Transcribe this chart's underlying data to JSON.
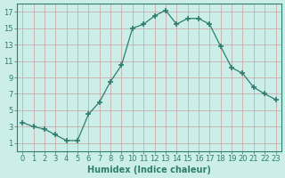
{
  "x": [
    0,
    1,
    2,
    3,
    4,
    5,
    6,
    7,
    8,
    9,
    10,
    11,
    12,
    13,
    14,
    15,
    16,
    17,
    18,
    19,
    20,
    21,
    22,
    23
  ],
  "y": [
    3.5,
    3.0,
    2.7,
    2.0,
    1.3,
    1.3,
    4.5,
    6.0,
    8.5,
    10.5,
    15.0,
    15.5,
    16.5,
    17.2,
    15.5,
    16.2,
    16.2,
    15.5,
    12.8,
    10.2,
    9.5,
    7.8,
    7.0,
    6.3
  ],
  "line_color": "#2e7d6e",
  "marker": "+",
  "marker_size": 4,
  "bg_color": "#cceee8",
  "grid_color": "#c8a0a0",
  "xlabel": "Humidex (Indice chaleur)",
  "xlabel_fontsize": 7,
  "tick_fontsize": 6,
  "ylim": [
    0,
    18
  ],
  "xlim": [
    -0.5,
    23.5
  ],
  "yticks": [
    1,
    3,
    5,
    7,
    9,
    11,
    13,
    15,
    17
  ],
  "xticks": [
    0,
    1,
    2,
    3,
    4,
    5,
    6,
    7,
    8,
    9,
    10,
    11,
    12,
    13,
    14,
    15,
    16,
    17,
    18,
    19,
    20,
    21,
    22,
    23
  ]
}
